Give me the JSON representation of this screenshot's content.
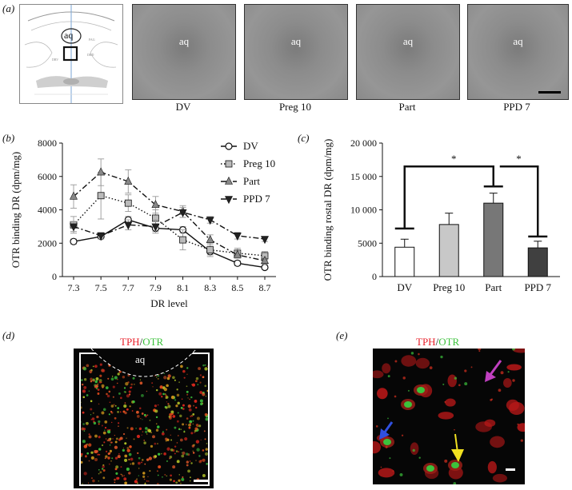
{
  "panel_labels": {
    "a": "(a)",
    "b": "(b)",
    "c": "(c)",
    "d": "(d)",
    "e": "(e)"
  },
  "panel_a": {
    "atlas_aq": "aq",
    "images": [
      {
        "label": "aq",
        "caption": "DV"
      },
      {
        "label": "aq",
        "caption": "Preg 10"
      },
      {
        "label": "aq",
        "caption": "Part"
      },
      {
        "label": "aq",
        "caption": "PPD 7"
      }
    ]
  },
  "chart_data": [
    {
      "type": "line",
      "x": [
        "7.3",
        "7.5",
        "7.7",
        "7.9",
        "8.1",
        "8.3",
        "8.5",
        "8.7"
      ],
      "series": [
        {
          "name": "DV",
          "values": [
            2100,
            2400,
            3400,
            2900,
            2800,
            1500,
            800,
            550
          ],
          "errors": [
            150,
            150,
            200,
            200,
            200,
            200,
            150,
            100
          ],
          "marker": "circle",
          "dash": "solid",
          "color": "#ffffff"
        },
        {
          "name": "Preg 10",
          "values": [
            3100,
            4850,
            4400,
            3500,
            2200,
            1600,
            1400,
            1250
          ],
          "errors": [
            500,
            1400,
            500,
            500,
            600,
            400,
            300,
            250
          ],
          "marker": "square",
          "dash": "dotted",
          "color": "#bbbbbb"
        },
        {
          "name": "Part",
          "values": [
            4800,
            6250,
            5700,
            4300,
            3900,
            2200,
            1300,
            950
          ],
          "errors": [
            700,
            800,
            700,
            500,
            350,
            300,
            200,
            200
          ],
          "marker": "triangle-up",
          "dash": "dashdot",
          "color": "#888888"
        },
        {
          "name": "PPD 7",
          "values": [
            3000,
            2450,
            3100,
            3000,
            3850,
            3400,
            2450,
            2250
          ],
          "errors": [
            300,
            200,
            300,
            400,
            300,
            200,
            200,
            150
          ],
          "marker": "triangle-down",
          "dash": "dashdot",
          "color": "#222222"
        }
      ],
      "xlabel": "DR level",
      "ylabel": "OTR binding DR (dpm/mg)",
      "yticks": [
        "0",
        "2000",
        "4000",
        "6000",
        "8000"
      ],
      "ylim": [
        0,
        8000
      ],
      "legend_position": "top-right"
    },
    {
      "type": "bar",
      "categories": [
        "DV",
        "Preg 10",
        "Part",
        "PPD 7"
      ],
      "values": [
        4400,
        7800,
        11000,
        4300
      ],
      "errors": [
        1200,
        1700,
        1500,
        1000
      ],
      "colors": [
        "#ffffff",
        "#c8c8c8",
        "#777777",
        "#404040"
      ],
      "ylabel": "OTR binding  rostal DR (dpm/mg)",
      "yticks": [
        "0",
        "5000",
        "10 000",
        "15 000",
        "20 000"
      ],
      "ylim": [
        0,
        20000
      ],
      "significance": [
        "*",
        "*"
      ]
    }
  ],
  "panel_d": {
    "stain_red": "TPH",
    "slash": "/",
    "stain_green": "OTR",
    "aq_label": "aq"
  },
  "panel_e": {
    "stain_red": "TPH",
    "slash": "/",
    "stain_green": "OTR"
  },
  "colors": {
    "red_stain": "#e8202a",
    "green_stain": "#3cc23c",
    "arrow_magenta": "#c040c0",
    "arrow_blue": "#3050e0",
    "arrow_yellow": "#f0e020"
  }
}
